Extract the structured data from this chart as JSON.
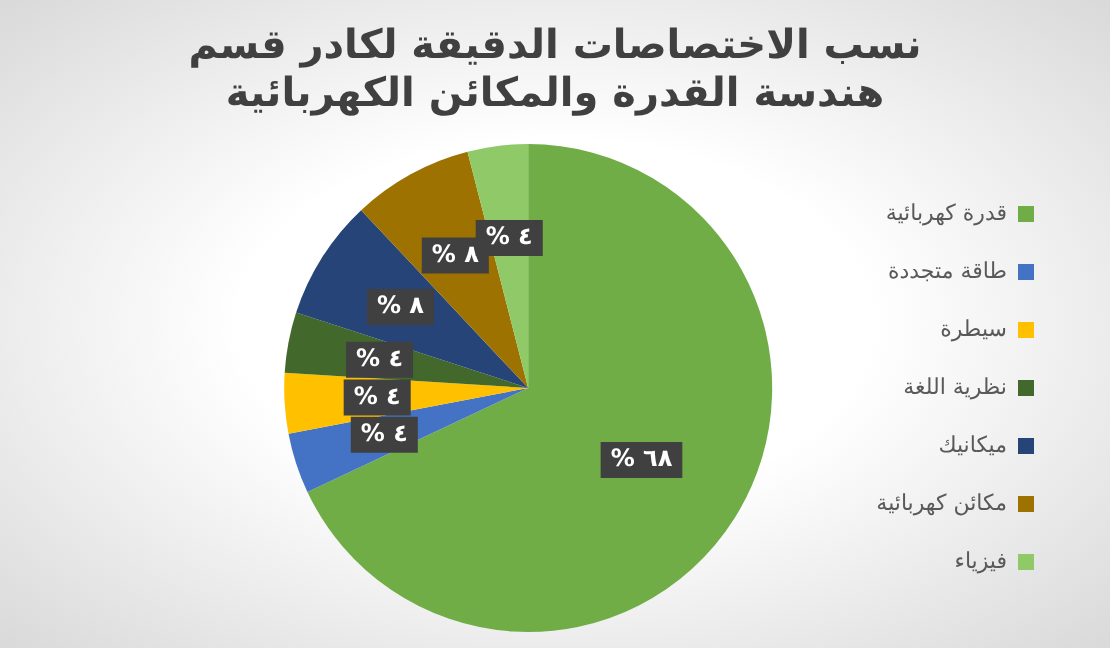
{
  "chart_data": {
    "type": "pie",
    "title": "نسب الاختصاصات الدقيقة لكادر قسم هندسة القدرة والمكائن الكهربائية",
    "categories": [
      "قدرة كهربائية",
      "طاقة متجددة",
      "سيطرة",
      "نظرية اللغة",
      "ميكانيك",
      "مكائن كهربائية",
      "فيزياء"
    ],
    "values": [
      68,
      4,
      4,
      4,
      8,
      8,
      4
    ],
    "colors": [
      "#70ad47",
      "#4472c4",
      "#ffc000",
      "#43682b",
      "#264478",
      "#9e7200",
      "#8fc968"
    ],
    "value_labels": [
      "% ٦٨",
      "% ٤",
      "% ٤",
      "% ٤",
      "% ٨",
      "% ٨",
      "% ٤"
    ],
    "legend": "right"
  }
}
